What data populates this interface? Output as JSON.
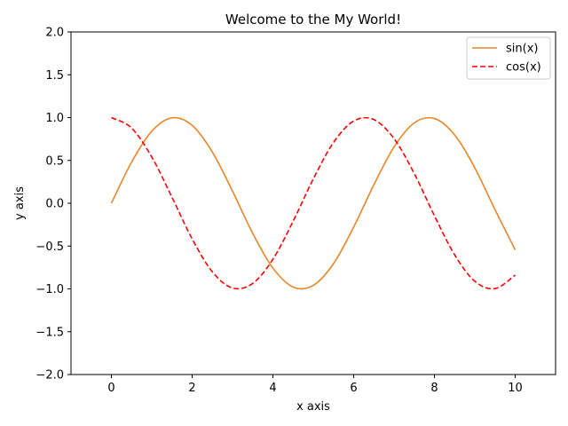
{
  "chart_data": {
    "type": "line",
    "title": "Welcome to the My World!",
    "xlabel": "x axis",
    "ylabel": "y axis",
    "xlim": [
      -1,
      11
    ],
    "ylim": [
      -2,
      2
    ],
    "x_ticks": [
      0,
      2,
      4,
      6,
      8,
      10
    ],
    "y_ticks": [
      -2.0,
      -1.5,
      -1.0,
      -0.5,
      0.0,
      0.5,
      1.0,
      1.5,
      2.0
    ],
    "x_tick_labels": [
      "0",
      "2",
      "4",
      "6",
      "8",
      "10"
    ],
    "y_tick_labels": [
      "−2.0",
      "−1.5",
      "−1.0",
      "−0.5",
      "0.0",
      "0.5",
      "1.0",
      "1.5",
      "2.0"
    ],
    "grid": false,
    "legend_position": "top-right",
    "series": [
      {
        "name": "sin(x)",
        "color": "#e8862a",
        "style": "solid",
        "x": [
          0,
          0.5,
          1,
          1.5,
          2,
          2.5,
          3,
          3.5,
          4,
          4.5,
          5,
          5.5,
          6,
          6.5,
          7,
          7.5,
          8,
          8.5,
          9,
          9.5,
          10
        ],
        "y": [
          0,
          0.479,
          0.841,
          0.997,
          0.909,
          0.598,
          0.141,
          -0.351,
          -0.757,
          -0.978,
          -0.959,
          -0.706,
          -0.279,
          0.215,
          0.657,
          0.938,
          0.989,
          0.798,
          0.412,
          -0.075,
          -0.544
        ]
      },
      {
        "name": "cos(x)",
        "color": "#ff0000",
        "style": "dashed",
        "x": [
          0,
          0.5,
          1,
          1.5,
          2,
          2.5,
          3,
          3.5,
          4,
          4.5,
          5,
          5.5,
          6,
          6.5,
          7,
          7.5,
          8,
          8.5,
          9,
          9.5,
          10
        ],
        "y": [
          1,
          0.878,
          0.54,
          0.071,
          -0.416,
          -0.801,
          -0.99,
          -0.936,
          -0.654,
          -0.211,
          0.284,
          0.709,
          0.96,
          0.977,
          0.754,
          0.347,
          -0.146,
          -0.602,
          -0.911,
          -0.997,
          -0.839
        ]
      }
    ]
  }
}
